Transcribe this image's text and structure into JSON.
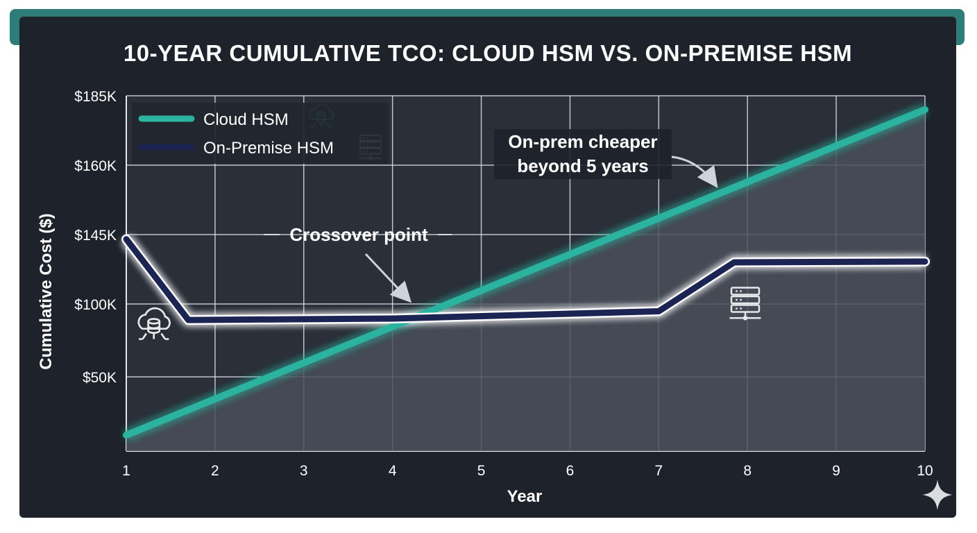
{
  "chart_data": {
    "type": "line",
    "title": "10-YEAR CUMULATIVE TCO: CLOUD HSM VS. ON-PREMISE HSM",
    "xlabel": "Year",
    "ylabel": "Cumulative Cost ($)",
    "x": [
      1,
      2,
      3,
      4,
      5,
      6,
      7,
      8,
      9,
      10
    ],
    "xlim": [
      1,
      10
    ],
    "y_ticks": [
      {
        "value": 50000,
        "label": "$50K"
      },
      {
        "value": 100000,
        "label": "$100K"
      },
      {
        "value": 145000,
        "label": "$145K"
      },
      {
        "value": 160000,
        "label": "$160K"
      },
      {
        "value": 185000,
        "label": "$185K"
      }
    ],
    "x_ticks": [
      "1",
      "2",
      "3",
      "4",
      "5",
      "6",
      "7",
      "8",
      "9",
      "10"
    ],
    "grid": true,
    "legend_position": "top-left",
    "series": [
      {
        "name": "Cloud HSM",
        "color": "#2bb3a0",
        "icon": "cloud-database-icon",
        "points": [
          [
            1,
            10000
          ],
          [
            10,
            180000
          ]
        ]
      },
      {
        "name": "On-Premise HSM",
        "color": "#1b2452",
        "icon": "server-rack-icon",
        "points": [
          [
            1,
            142000
          ],
          [
            1.7,
            89000
          ],
          [
            4,
            90000
          ],
          [
            7,
            95000
          ],
          [
            7.85,
            127000
          ],
          [
            10,
            127500
          ]
        ]
      }
    ],
    "annotations": [
      {
        "text": "Crossover point",
        "icon": "arrow-icon"
      },
      {
        "text": "On-prem cheaper",
        "text2": "beyond 5 years",
        "icon": "curved-arrow-icon"
      }
    ]
  }
}
